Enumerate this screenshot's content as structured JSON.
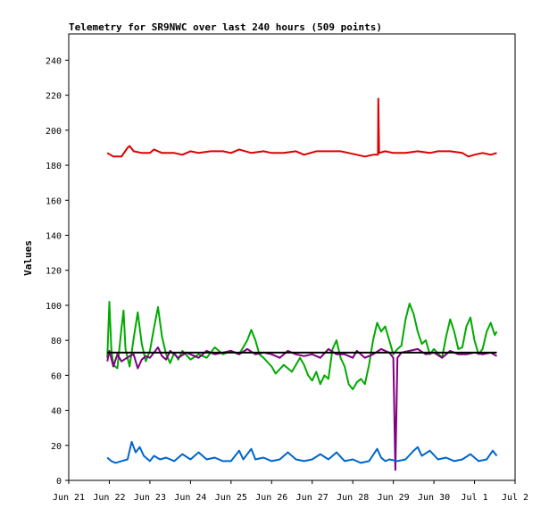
{
  "chart_data": {
    "type": "line",
    "title": "Telemetry for SR9NWC over last 240 hours (509 points)",
    "xlabel": "",
    "ylabel": "Values",
    "ylim": [
      0,
      255
    ],
    "y_ticks": [
      0,
      20,
      40,
      60,
      80,
      100,
      120,
      140,
      160,
      180,
      200,
      220,
      240
    ],
    "x_ticks": [
      "Jun 21",
      "Jun 22",
      "Jun 23",
      "Jun 24",
      "Jun 25",
      "Jun 26",
      "Jun 27",
      "Jun 28",
      "Jun 29",
      "Jun 30",
      "Jul 1",
      "Jul 2"
    ],
    "xlim_days": [
      0,
      11
    ],
    "grid": false,
    "legend": "none",
    "series": [
      {
        "color": "#dd0000",
        "points": [
          [
            0.95,
            187
          ],
          [
            1.1,
            185
          ],
          [
            1.3,
            185
          ],
          [
            1.45,
            190
          ],
          [
            1.5,
            191
          ],
          [
            1.6,
            188
          ],
          [
            1.8,
            187
          ],
          [
            2.0,
            187
          ],
          [
            2.1,
            189
          ],
          [
            2.3,
            187
          ],
          [
            2.6,
            187
          ],
          [
            2.8,
            186
          ],
          [
            3.0,
            188
          ],
          [
            3.2,
            187
          ],
          [
            3.5,
            188
          ],
          [
            3.8,
            188
          ],
          [
            4.0,
            187
          ],
          [
            4.2,
            189
          ],
          [
            4.5,
            187
          ],
          [
            4.8,
            188
          ],
          [
            5.0,
            187
          ],
          [
            5.3,
            187
          ],
          [
            5.6,
            188
          ],
          [
            5.8,
            186
          ],
          [
            6.1,
            188
          ],
          [
            6.4,
            188
          ],
          [
            6.7,
            188
          ],
          [
            6.9,
            187
          ],
          [
            7.1,
            186
          ],
          [
            7.3,
            185
          ],
          [
            7.5,
            186
          ],
          [
            7.62,
            186
          ],
          [
            7.63,
            218
          ],
          [
            7.65,
            187
          ],
          [
            7.8,
            188
          ],
          [
            8.0,
            187
          ],
          [
            8.3,
            187
          ],
          [
            8.6,
            188
          ],
          [
            8.9,
            187
          ],
          [
            9.1,
            188
          ],
          [
            9.4,
            188
          ],
          [
            9.7,
            187
          ],
          [
            9.85,
            185
          ],
          [
            10.0,
            186
          ],
          [
            10.2,
            187
          ],
          [
            10.4,
            186
          ],
          [
            10.55,
            187
          ]
        ]
      },
      {
        "color": "#00aa00",
        "points": [
          [
            0.95,
            70
          ],
          [
            1.0,
            102
          ],
          [
            1.05,
            75
          ],
          [
            1.1,
            66
          ],
          [
            1.2,
            64
          ],
          [
            1.3,
            87
          ],
          [
            1.35,
            97
          ],
          [
            1.4,
            75
          ],
          [
            1.5,
            65
          ],
          [
            1.6,
            81
          ],
          [
            1.7,
            96
          ],
          [
            1.8,
            78
          ],
          [
            1.9,
            68
          ],
          [
            2.0,
            74
          ],
          [
            2.1,
            87
          ],
          [
            2.2,
            99
          ],
          [
            2.3,
            82
          ],
          [
            2.4,
            72
          ],
          [
            2.5,
            67
          ],
          [
            2.6,
            73
          ],
          [
            2.7,
            69
          ],
          [
            2.8,
            74
          ],
          [
            3.0,
            69
          ],
          [
            3.2,
            72
          ],
          [
            3.4,
            70
          ],
          [
            3.6,
            76
          ],
          [
            3.8,
            72
          ],
          [
            4.0,
            74
          ],
          [
            4.2,
            72
          ],
          [
            4.4,
            80
          ],
          [
            4.5,
            86
          ],
          [
            4.6,
            80
          ],
          [
            4.7,
            72
          ],
          [
            4.8,
            70
          ],
          [
            5.0,
            65
          ],
          [
            5.1,
            61
          ],
          [
            5.3,
            66
          ],
          [
            5.5,
            62
          ],
          [
            5.7,
            70
          ],
          [
            5.8,
            66
          ],
          [
            5.9,
            60
          ],
          [
            6.0,
            57
          ],
          [
            6.1,
            62
          ],
          [
            6.2,
            55
          ],
          [
            6.3,
            60
          ],
          [
            6.4,
            58
          ],
          [
            6.5,
            75
          ],
          [
            6.6,
            80
          ],
          [
            6.7,
            70
          ],
          [
            6.8,
            65
          ],
          [
            6.9,
            55
          ],
          [
            7.0,
            52
          ],
          [
            7.1,
            56
          ],
          [
            7.2,
            58
          ],
          [
            7.3,
            55
          ],
          [
            7.4,
            66
          ],
          [
            7.5,
            80
          ],
          [
            7.6,
            90
          ],
          [
            7.7,
            85
          ],
          [
            7.8,
            88
          ],
          [
            7.9,
            80
          ],
          [
            8.0,
            72
          ],
          [
            8.1,
            75
          ],
          [
            8.2,
            77
          ],
          [
            8.3,
            92
          ],
          [
            8.4,
            101
          ],
          [
            8.5,
            95
          ],
          [
            8.6,
            85
          ],
          [
            8.7,
            78
          ],
          [
            8.8,
            80
          ],
          [
            8.9,
            72
          ],
          [
            9.0,
            75
          ],
          [
            9.2,
            70
          ],
          [
            9.3,
            82
          ],
          [
            9.4,
            92
          ],
          [
            9.5,
            85
          ],
          [
            9.6,
            75
          ],
          [
            9.7,
            76
          ],
          [
            9.8,
            88
          ],
          [
            9.9,
            93
          ],
          [
            10.0,
            80
          ],
          [
            10.1,
            72
          ],
          [
            10.2,
            75
          ],
          [
            10.3,
            85
          ],
          [
            10.4,
            90
          ],
          [
            10.5,
            83
          ],
          [
            10.55,
            85
          ]
        ]
      },
      {
        "color": "#800080",
        "points": [
          [
            0.95,
            68
          ],
          [
            1.0,
            74
          ],
          [
            1.1,
            65
          ],
          [
            1.2,
            72
          ],
          [
            1.3,
            68
          ],
          [
            1.5,
            71
          ],
          [
            1.6,
            72
          ],
          [
            1.7,
            64
          ],
          [
            1.8,
            69
          ],
          [
            1.9,
            71
          ],
          [
            2.0,
            70
          ],
          [
            2.1,
            73
          ],
          [
            2.2,
            76
          ],
          [
            2.3,
            71
          ],
          [
            2.4,
            69
          ],
          [
            2.5,
            74
          ],
          [
            2.7,
            70
          ],
          [
            2.9,
            73
          ],
          [
            3.0,
            72
          ],
          [
            3.2,
            70
          ],
          [
            3.4,
            74
          ],
          [
            3.6,
            72
          ],
          [
            3.8,
            73
          ],
          [
            4.0,
            74
          ],
          [
            4.2,
            72
          ],
          [
            4.4,
            75
          ],
          [
            4.6,
            72
          ],
          [
            4.8,
            73
          ],
          [
            5.0,
            72
          ],
          [
            5.2,
            70
          ],
          [
            5.4,
            74
          ],
          [
            5.6,
            72
          ],
          [
            5.8,
            71
          ],
          [
            6.0,
            72
          ],
          [
            6.2,
            70
          ],
          [
            6.4,
            75
          ],
          [
            6.6,
            72
          ],
          [
            6.8,
            72
          ],
          [
            7.0,
            70
          ],
          [
            7.1,
            74
          ],
          [
            7.3,
            70
          ],
          [
            7.5,
            72
          ],
          [
            7.7,
            75
          ],
          [
            7.9,
            73
          ],
          [
            8.0,
            70
          ],
          [
            8.05,
            6
          ],
          [
            8.1,
            70
          ],
          [
            8.2,
            73
          ],
          [
            8.4,
            74
          ],
          [
            8.6,
            75
          ],
          [
            8.8,
            72
          ],
          [
            9.0,
            73
          ],
          [
            9.2,
            70
          ],
          [
            9.4,
            74
          ],
          [
            9.6,
            72
          ],
          [
            9.8,
            72
          ],
          [
            10.0,
            73
          ],
          [
            10.2,
            72
          ],
          [
            10.4,
            73
          ],
          [
            10.55,
            71
          ]
        ]
      },
      {
        "color": "#000000",
        "points": [
          [
            0.95,
            73
          ],
          [
            10.55,
            73
          ]
        ]
      },
      {
        "color": "#0066cc",
        "points": [
          [
            0.95,
            13
          ],
          [
            1.05,
            11
          ],
          [
            1.15,
            10
          ],
          [
            1.3,
            11
          ],
          [
            1.45,
            12
          ],
          [
            1.55,
            22
          ],
          [
            1.65,
            16
          ],
          [
            1.75,
            19
          ],
          [
            1.85,
            14
          ],
          [
            2.0,
            11
          ],
          [
            2.1,
            14
          ],
          [
            2.25,
            12
          ],
          [
            2.4,
            13
          ],
          [
            2.6,
            11
          ],
          [
            2.8,
            15
          ],
          [
            3.0,
            12
          ],
          [
            3.2,
            16
          ],
          [
            3.4,
            12
          ],
          [
            3.6,
            13
          ],
          [
            3.8,
            11
          ],
          [
            4.0,
            11
          ],
          [
            4.2,
            17
          ],
          [
            4.3,
            12
          ],
          [
            4.5,
            18
          ],
          [
            4.6,
            12
          ],
          [
            4.8,
            13
          ],
          [
            5.0,
            11
          ],
          [
            5.2,
            12
          ],
          [
            5.4,
            16
          ],
          [
            5.6,
            12
          ],
          [
            5.8,
            11
          ],
          [
            6.0,
            12
          ],
          [
            6.2,
            15
          ],
          [
            6.4,
            12
          ],
          [
            6.6,
            16
          ],
          [
            6.8,
            11
          ],
          [
            7.0,
            12
          ],
          [
            7.2,
            10
          ],
          [
            7.4,
            11
          ],
          [
            7.6,
            18
          ],
          [
            7.7,
            13
          ],
          [
            7.8,
            11
          ],
          [
            7.9,
            12
          ],
          [
            8.1,
            11
          ],
          [
            8.3,
            12
          ],
          [
            8.5,
            17
          ],
          [
            8.6,
            19
          ],
          [
            8.7,
            14
          ],
          [
            8.9,
            17
          ],
          [
            9.1,
            12
          ],
          [
            9.3,
            13
          ],
          [
            9.5,
            11
          ],
          [
            9.7,
            12
          ],
          [
            9.9,
            15
          ],
          [
            10.1,
            11
          ],
          [
            10.3,
            12
          ],
          [
            10.45,
            17
          ],
          [
            10.55,
            14
          ]
        ]
      }
    ]
  }
}
